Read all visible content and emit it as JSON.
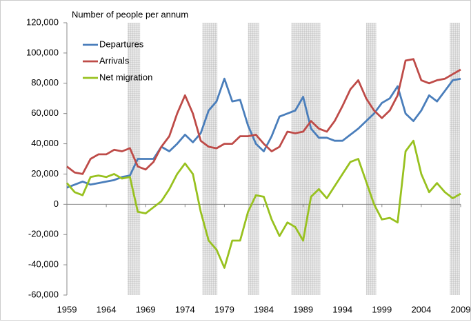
{
  "chart_data": {
    "type": "line",
    "title": "Number of people per annum",
    "x": [
      1959,
      1960,
      1961,
      1962,
      1963,
      1964,
      1965,
      1966,
      1967,
      1968,
      1969,
      1970,
      1971,
      1972,
      1973,
      1974,
      1975,
      1976,
      1977,
      1978,
      1979,
      1980,
      1981,
      1982,
      1983,
      1984,
      1985,
      1986,
      1987,
      1988,
      1989,
      1990,
      1991,
      1992,
      1993,
      1994,
      1995,
      1996,
      1997,
      1998,
      1999,
      2000,
      2001,
      2002,
      2003,
      2004,
      2005,
      2006,
      2007,
      2008,
      2009
    ],
    "series": [
      {
        "name": "Departures",
        "color": "#4a7ebb",
        "values": [
          11000,
          13000,
          15000,
          13000,
          14000,
          15000,
          16000,
          18000,
          19000,
          30000,
          30000,
          30000,
          38000,
          35000,
          40000,
          46000,
          41000,
          47000,
          62000,
          68000,
          83000,
          68000,
          69000,
          52000,
          40000,
          35000,
          45000,
          58000,
          60000,
          62000,
          71000,
          50000,
          44000,
          44000,
          42000,
          42000,
          46000,
          50000,
          55000,
          60000,
          67000,
          70000,
          78000,
          60000,
          55000,
          62000,
          72000,
          68000,
          75000,
          82000,
          83000
        ]
      },
      {
        "name": "Arrivals",
        "color": "#be4b48",
        "values": [
          25000,
          21000,
          20000,
          30000,
          33000,
          33000,
          36000,
          35000,
          37000,
          25000,
          23000,
          28000,
          38000,
          45000,
          60000,
          72000,
          60000,
          42000,
          38000,
          37000,
          40000,
          40000,
          45000,
          45000,
          46000,
          40000,
          35000,
          38000,
          48000,
          47000,
          48000,
          55000,
          50000,
          48000,
          55000,
          65000,
          76000,
          82000,
          70000,
          62000,
          57000,
          62000,
          72000,
          95000,
          96000,
          82000,
          80000,
          82000,
          83000,
          86000,
          89000
        ]
      },
      {
        "name": "Net migration",
        "color": "#98c11f",
        "values": [
          14000,
          8000,
          6000,
          18000,
          19000,
          18000,
          20000,
          17000,
          18000,
          -5000,
          -6000,
          -2000,
          2000,
          10000,
          20000,
          27000,
          20000,
          -5000,
          -24000,
          -30000,
          -42000,
          -24000,
          -24000,
          -5000,
          6000,
          5000,
          -10000,
          -21000,
          -12000,
          -15000,
          -24000,
          5000,
          10000,
          4000,
          12000,
          20000,
          28000,
          30000,
          15000,
          0,
          -10000,
          -9000,
          -12000,
          35000,
          42000,
          20000,
          8000,
          14000,
          8000,
          4000,
          7000
        ]
      }
    ],
    "shaded_periods": [
      [
        1966.7,
        1968.3
      ],
      [
        1976.2,
        1978.1
      ],
      [
        1982.0,
        1983.4
      ],
      [
        1987.5,
        1991.2
      ],
      [
        1997.0,
        1998.3
      ],
      [
        2007.6,
        2008.9
      ]
    ],
    "xlim": [
      1959,
      2009
    ],
    "xticks": [
      1959,
      1964,
      1969,
      1974,
      1979,
      1984,
      1989,
      1994,
      1999,
      2004,
      2009
    ],
    "ylim": [
      -60000,
      120000
    ],
    "yticks": [
      {
        "value": -60000,
        "label": "-60,000"
      },
      {
        "value": -40000,
        "label": "-40,000"
      },
      {
        "value": -20000,
        "label": "-20,000"
      },
      0,
      {
        "value": 20000,
        "label": "20,000"
      },
      {
        "value": 40000,
        "label": "40,000"
      },
      {
        "value": 60000,
        "label": "60,000"
      },
      {
        "value": 80000,
        "label": "80,000"
      },
      {
        "value": 100000,
        "label": "100,000"
      },
      {
        "value": 120000,
        "label": "120,000"
      }
    ]
  }
}
